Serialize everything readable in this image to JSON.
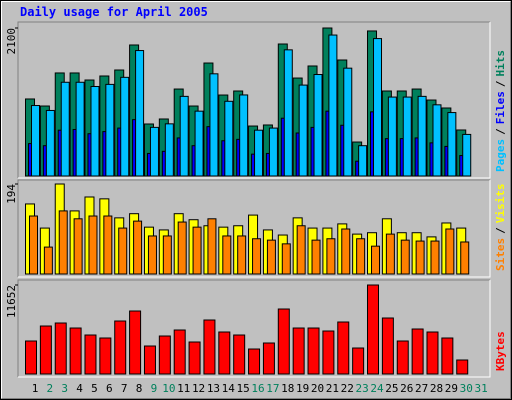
{
  "chart_data": [
    {
      "type": "bar",
      "title": "Daily usage for April 2005",
      "categories": [
        "1",
        "2",
        "3",
        "4",
        "5",
        "6",
        "7",
        "8",
        "9",
        "10",
        "11",
        "12",
        "13",
        "14",
        "15",
        "16",
        "17",
        "18",
        "19",
        "20",
        "21",
        "22",
        "23",
        "24",
        "25",
        "26",
        "27",
        "28",
        "29",
        "30",
        "31"
      ],
      "category_colors": [
        "#000000",
        "#00805c",
        "#00805c",
        "#000000",
        "#000000",
        "#000000",
        "#000000",
        "#000000",
        "#00805c",
        "#00805c",
        "#000000",
        "#000000",
        "#000000",
        "#000000",
        "#000000",
        "#00805c",
        "#00805c",
        "#000000",
        "#000000",
        "#000000",
        "#000000",
        "#000000",
        "#00805c",
        "#00805c",
        "#000000",
        "#000000",
        "#000000",
        "#000000",
        "#000000",
        "#00805c",
        "#00805c"
      ],
      "legend_separator": "/",
      "ylim": [
        0,
        2100
      ],
      "yticks": [
        2100
      ],
      "series": [
        {
          "name": "Hits",
          "color": "#00805c",
          "values": [
            1093,
            993,
            1462,
            1462,
            1362,
            1419,
            1504,
            1859,
            738,
            809,
            1234,
            993,
            1603,
            1149,
            1206,
            709,
            724,
            1873,
            1390,
            1561,
            2100,
            1646,
            482,
            2058,
            1206,
            1206,
            1234,
            1078,
            965,
            653,
            0
          ]
        },
        {
          "name": "Files",
          "color": "#0000ff",
          "values": [
            460,
            430,
            650,
            660,
            600,
            630,
            680,
            800,
            320,
            350,
            540,
            430,
            700,
            500,
            520,
            310,
            320,
            820,
            610,
            690,
            920,
            720,
            210,
            910,
            530,
            530,
            540,
            470,
            420,
            290,
            0
          ]
        },
        {
          "name": "Pages",
          "color": "#00c0ff",
          "values": [
            1000,
            930,
            1330,
            1330,
            1270,
            1300,
            1400,
            1780,
            690,
            740,
            1130,
            920,
            1450,
            1060,
            1150,
            650,
            680,
            1790,
            1290,
            1440,
            2000,
            1530,
            430,
            1950,
            1120,
            1120,
            1130,
            1010,
            900,
            590,
            0
          ]
        }
      ]
    },
    {
      "type": "bar",
      "legend_separator": "/",
      "ylim": [
        0,
        194
      ],
      "yticks": [
        194
      ],
      "series": [
        {
          "name": "Visits",
          "color": "#ffff00",
          "values": [
            151,
            99,
            194,
            136,
            166,
            162,
            121,
            130,
            101,
            95,
            130,
            117,
            104,
            101,
            104,
            127,
            95,
            84,
            121,
            99,
            99,
            108,
            86,
            89,
            119,
            89,
            89,
            80,
            110,
            99,
            0
          ]
        },
        {
          "name": "Sites",
          "color": "#ff8000",
          "values": [
            125,
            58,
            136,
            119,
            125,
            125,
            99,
            114,
            82,
            82,
            112,
            101,
            119,
            82,
            82,
            76,
            73,
            65,
            104,
            73,
            76,
            97,
            76,
            60,
            86,
            73,
            71,
            71,
            97,
            69,
            0
          ]
        }
      ]
    },
    {
      "type": "bar",
      "ylim": [
        0,
        11652
      ],
      "yticks": [
        11652
      ],
      "series": [
        {
          "name": "KBytes",
          "color": "#ff0000",
          "values": [
            4320,
            6283,
            6676,
            6021,
            5105,
            4713,
            6938,
            8247,
            3665,
            4974,
            5760,
            4189,
            7069,
            5498,
            5105,
            3272,
            4058,
            8509,
            6021,
            6021,
            5629,
            6807,
            3403,
            11652,
            7331,
            4320,
            5891,
            5498,
            4713,
            1833,
            0
          ]
        }
      ]
    }
  ]
}
